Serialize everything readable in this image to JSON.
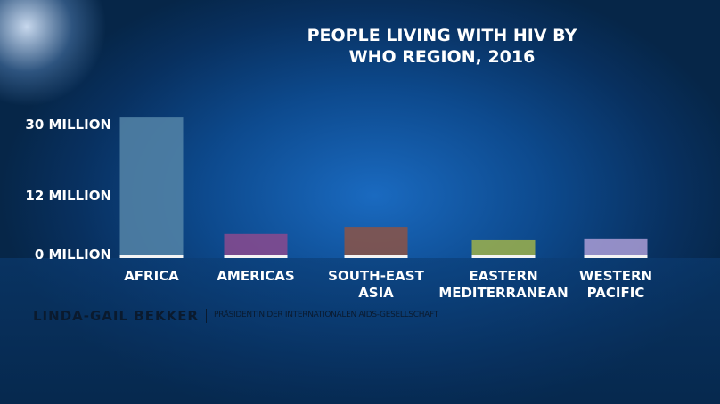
{
  "chart_data": {
    "type": "bar",
    "title": "PEOPLE LIVING WITH HIV BY\nWHO REGION, 2016",
    "categories": [
      "AFRICA",
      "AMERICAS",
      "SOUTH-EAST\nASIA",
      "EASTERN\nMEDITERRANEAN",
      "WESTERN\nPACIFIC"
    ],
    "values": [
      32,
      4.4,
      5.8,
      3.1,
      3.3
    ],
    "colors": [
      "#5585a8",
      "#8b4a8e",
      "#8c5445",
      "#9fb24a",
      "#ab9dd6"
    ],
    "ylim": [
      0,
      32
    ],
    "yticks": [
      {
        "value": 0,
        "label": "0 MILLION"
      },
      {
        "value": 12,
        "label": "12 MILLION"
      },
      {
        "value": 30,
        "label": "30 MILLION"
      }
    ],
    "grid": false
  },
  "caption": {
    "name": "LINDA-GAIL BEKKER",
    "role": "PRÄSIDENTIN DER INTERNATIONALEN AIDS-GESELLSCHAFT"
  }
}
